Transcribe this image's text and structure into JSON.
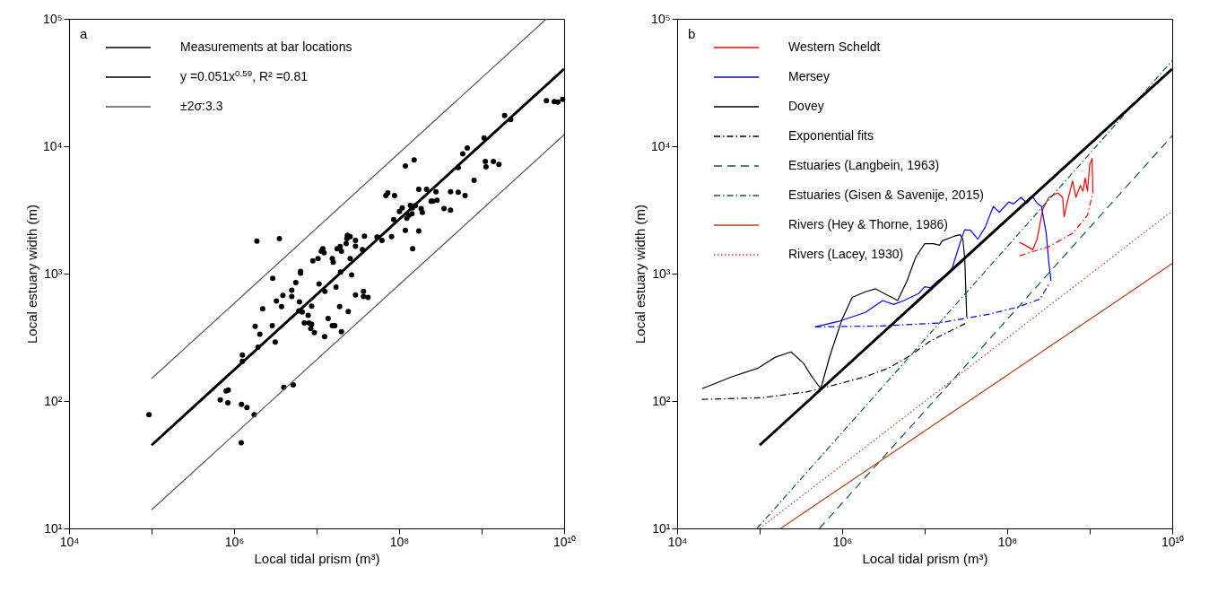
{
  "chart_data": [
    {
      "type": "scatter",
      "annotations": [
        "a"
      ],
      "xlabel": "Local tidal prism (m³)",
      "ylabel": "Local estuary width (m)",
      "log": "xy",
      "legend": "top left",
      "xlim": [
        10000,
        10000000000
      ],
      "ylim": [
        10,
        100000
      ],
      "xticks": [
        {
          "value": 10000,
          "label": "10⁴"
        },
        {
          "value": 100000,
          "label": null
        },
        {
          "value": 1000000,
          "label": "10⁶"
        },
        {
          "value": 10000000,
          "label": null
        },
        {
          "value": 100000000,
          "label": "10⁸"
        },
        {
          "value": 1000000000,
          "label": null
        },
        {
          "value": 10000000000,
          "label": "10¹⁰"
        }
      ],
      "yticks": [
        {
          "value": 10,
          "label": "10¹"
        },
        {
          "value": 100,
          "label": "10²"
        },
        {
          "value": 1000,
          "label": "10³"
        },
        {
          "value": 10000,
          "label": "10⁴"
        },
        {
          "value": 100000,
          "label": "10⁵"
        }
      ],
      "series": [
        {
          "name": "Measurements at bar locations",
          "type": "scatter",
          "marker": "circle",
          "color": "#000000",
          "x": [
            93000,
            1890000,
            3540000,
            23600000,
            25500000,
            23300000,
            29600000,
            11900000,
            11400000,
            12300000,
            17700000,
            19300000,
            22800000,
            20000000,
            9000000,
            10400000,
            15500000,
            15900000,
            25500000,
            29600000,
            6400000,
            6400000,
            19500000,
            26600000,
            2940000,
            5600000,
            5000000,
            3900000,
            5000000,
            3260000,
            6200000,
            3760000,
            2220000,
            8700000,
            10700000,
            12600000,
            17200000,
            29600000,
            6100000,
            6700000,
            7900000,
            19000000,
            24200000,
            1800000,
            2900000,
            2050000,
            7100000,
            8100000,
            8700000,
            8500000,
            9400000,
            13800000,
            15500000,
            16600000,
            12500000,
            20000000,
            3150000,
            1950000,
            1260000,
            1260000,
            850000,
            800000,
            680000,
            840000,
            1230000,
            1430000,
            1750000,
            4000000,
            5200000,
            1220000,
            6100000000,
            7600000000,
            8400000000,
            9600000000,
            1900000000,
            2250000000,
            1070000000,
            670000000,
            590000000,
            520000000,
            1110000000,
            1390000000,
            1620000000,
            1130000000,
            119000000,
            152000000,
            810000000,
            69000000,
            73000000,
            88000000,
            173000000,
            215000000,
            280000000,
            244000000,
            256000000,
            288000000,
            420000000,
            520000000,
            630000000,
            350000000,
            420000000,
            101000000,
            109000000,
            137000000,
            145000000,
            157000000,
            185000000,
            191000000,
            131000000,
            143000000,
            124000000,
            86000000,
            119000000,
            173000000,
            38000000,
            54000000,
            62000000,
            81000000,
            36000000,
            146000000,
            37000000,
            37000000,
            42000000
          ],
          "values": [
            78,
            1800,
            1880,
            2000,
            1950,
            1880,
            1820,
            1570,
            1500,
            1460,
            1570,
            1630,
            1720,
            1500,
            1260,
            1310,
            1310,
            1230,
            1310,
            1640,
            1040,
            1010,
            1030,
            975,
            920,
            850,
            740,
            675,
            660,
            610,
            600,
            550,
            530,
            555,
            830,
            725,
            785,
            680,
            510,
            500,
            470,
            550,
            505,
            385,
            390,
            335,
            410,
            410,
            400,
            370,
            345,
            445,
            390,
            390,
            320,
            350,
            290,
            265,
            230,
            205,
            122,
            120,
            102,
            97,
            94,
            89,
            78,
            128,
            134,
            47,
            22800,
            22400,
            22200,
            23300,
            17400,
            16200,
            11600,
            9700,
            8700,
            6800,
            7600,
            7600,
            7200,
            6900,
            7000,
            7800,
            5400,
            4100,
            4300,
            4100,
            4600,
            4600,
            4400,
            3700,
            3700,
            3760,
            4400,
            4350,
            4100,
            3240,
            3150,
            3080,
            3280,
            3430,
            3280,
            3410,
            3240,
            3030,
            2870,
            2950,
            2720,
            2660,
            2190,
            2160,
            1970,
            1940,
            1820,
            1950,
            1540,
            1570,
            725,
            660,
            650
          ]
        },
        {
          "name": "y =0.051x$^{0.59}$, R² =0.81",
          "type": "line",
          "color": "#000000",
          "x": [
            100000,
            10000000000
          ],
          "values": [
            45,
            40500
          ]
        },
        {
          "name": "±2σ:3.3",
          "type": "line",
          "color": "#555555",
          "x": [
            100000,
            6100000000
          ],
          "values": [
            150,
            100000
          ]
        },
        {
          "type": "line",
          "color": "#555555",
          "x": [
            100000,
            10000000000
          ],
          "values": [
            14,
            12300
          ]
        }
      ]
    },
    {
      "type": "line",
      "annotations": [
        "b"
      ],
      "xlabel": "Local tidal prism (m³)",
      "ylabel": "Local estuary width (m)",
      "log": "xy",
      "legend": "top left",
      "xlim": [
        10000,
        10000000000
      ],
      "ylim": [
        10,
        100000
      ],
      "xticks": [
        {
          "value": 10000,
          "label": "10⁴"
        },
        {
          "value": 100000,
          "label": null
        },
        {
          "value": 1000000,
          "label": "10⁶"
        },
        {
          "value": 10000000,
          "label": null
        },
        {
          "value": 100000000,
          "label": "10⁸"
        },
        {
          "value": 1000000000,
          "label": null
        },
        {
          "value": 10000000000,
          "label": "10¹⁰"
        }
      ],
      "yticks": [
        {
          "value": 10,
          "label": "10¹"
        },
        {
          "value": 100,
          "label": "10²"
        },
        {
          "value": 1000,
          "label": "10³"
        },
        {
          "value": 10000,
          "label": "10⁴"
        },
        {
          "value": 100000,
          "label": "10⁵"
        }
      ],
      "series": [
        {
          "name": "Western Scheldt",
          "color": "#ff0000",
          "line_style": "solid",
          "x": [
            141000000,
            166000000,
            204000000,
            230000000,
            270000000,
            320000000,
            410000000,
            470000000,
            490000000,
            530000000,
            620000000,
            680000000,
            770000000,
            830000000,
            880000000,
            940000000,
            1000000000,
            1070000000,
            1090000000
          ],
          "values": [
            1760,
            1670,
            1540,
            1860,
            3200,
            3970,
            4300,
            3970,
            2790,
            3570,
            5350,
            3970,
            4920,
            4430,
            5640,
            4430,
            7200,
            8000,
            4430
          ]
        },
        {
          "name": "Mersey",
          "color": "#0000ff",
          "line_style": "solid",
          "x": [
            470000,
            910000,
            1910000,
            3100000,
            4200000,
            5600000,
            8500000,
            10000000,
            11800000,
            14500000,
            17800000,
            21000000,
            27000000,
            30500000,
            36000000,
            44000000,
            54000000,
            68000000,
            80000000,
            105000000,
            119000000,
            147000000,
            173000000,
            204000000,
            230000000,
            260000000,
            297000000,
            320000000,
            340000000
          ],
          "values": [
            382,
            422,
            496,
            615,
            573,
            615,
            700,
            790,
            775,
            880,
            950,
            1050,
            1760,
            2210,
            2190,
            1860,
            2310,
            3370,
            3030,
            3660,
            3520,
            3970,
            3570,
            4010,
            3570,
            3370,
            2070,
            1210,
            875
          ]
        },
        {
          "name": "Dovey",
          "color": "#000000",
          "line_style": "solid",
          "x": [
            20000,
            46000,
            97000,
            153000,
            240000,
            340000,
            430000,
            550000,
            710000,
            990000,
            1320000,
            1910000,
            2550000,
            3400000,
            4000000,
            4700000,
            6100000,
            7800000,
            10000000,
            12800000,
            15100000,
            16400000,
            22800000,
            27000000,
            29000000,
            30500000,
            31600000,
            32300000
          ],
          "values": [
            125,
            155,
            182,
            220,
            243,
            198,
            155,
            125,
            226,
            432,
            650,
            720,
            760,
            685,
            650,
            615,
            875,
            1350,
            1720,
            1720,
            1670,
            1810,
            1970,
            2020,
            1860,
            1350,
            700,
            455
          ]
        },
        {
          "name": "Exponential fits",
          "color": "#000000",
          "line_style": "dashdot",
          "x": [
            20000,
            106000,
            370000,
            550000,
            1910000,
            3700000,
            6600000,
            11800000,
            32000000
          ],
          "values": [
            103,
            106,
            118,
            125,
            155,
            182,
            226,
            297,
            410
          ]
        },
        {
          "name": "Estuaries (Langbein, 1963)",
          "color": "#0e5c4a",
          "line_style": "dashed",
          "x": [
            530000,
            10000000000
          ],
          "values": [
            10,
            12100
          ]
        },
        {
          "name": "Estuaries (Gisen & Savenije, 2015)",
          "color": "#0e5c4a",
          "line_style": "dashdot",
          "x": [
            93000,
            10000000000
          ],
          "values": [
            10,
            47000
          ]
        },
        {
          "name": "Rivers (Hey & Thorne, 1986)",
          "color": "#b5401a",
          "line_style": "solid",
          "x": [
            180000,
            10000000000
          ],
          "values": [
            10,
            1200
          ]
        },
        {
          "name": "Rivers (Lacey, 1930)",
          "color": "#c0391b",
          "line_style": "dotted",
          "x": [
            100000,
            10000000000
          ],
          "values": [
            10,
            3100
          ]
        },
        {
          "color": "#ff0000",
          "line_style": "dashdot",
          "x": [
            141000000,
            320000000,
            620000000,
            940000000,
            1100000000
          ],
          "values": [
            1380,
            1630,
            2070,
            2870,
            4430
          ]
        },
        {
          "color": "#0000ff",
          "line_style": "dashdot",
          "x": [
            470000,
            2900000,
            15100000,
            62000000,
            141000000,
            250000000,
            320000000
          ],
          "values": [
            382,
            388,
            410,
            482,
            552,
            632,
            830
          ]
        },
        {
          "color": "#000000",
          "line_style": "solid",
          "x": [
            100000,
            10000000000
          ],
          "values": [
            45,
            40500
          ]
        }
      ]
    }
  ]
}
